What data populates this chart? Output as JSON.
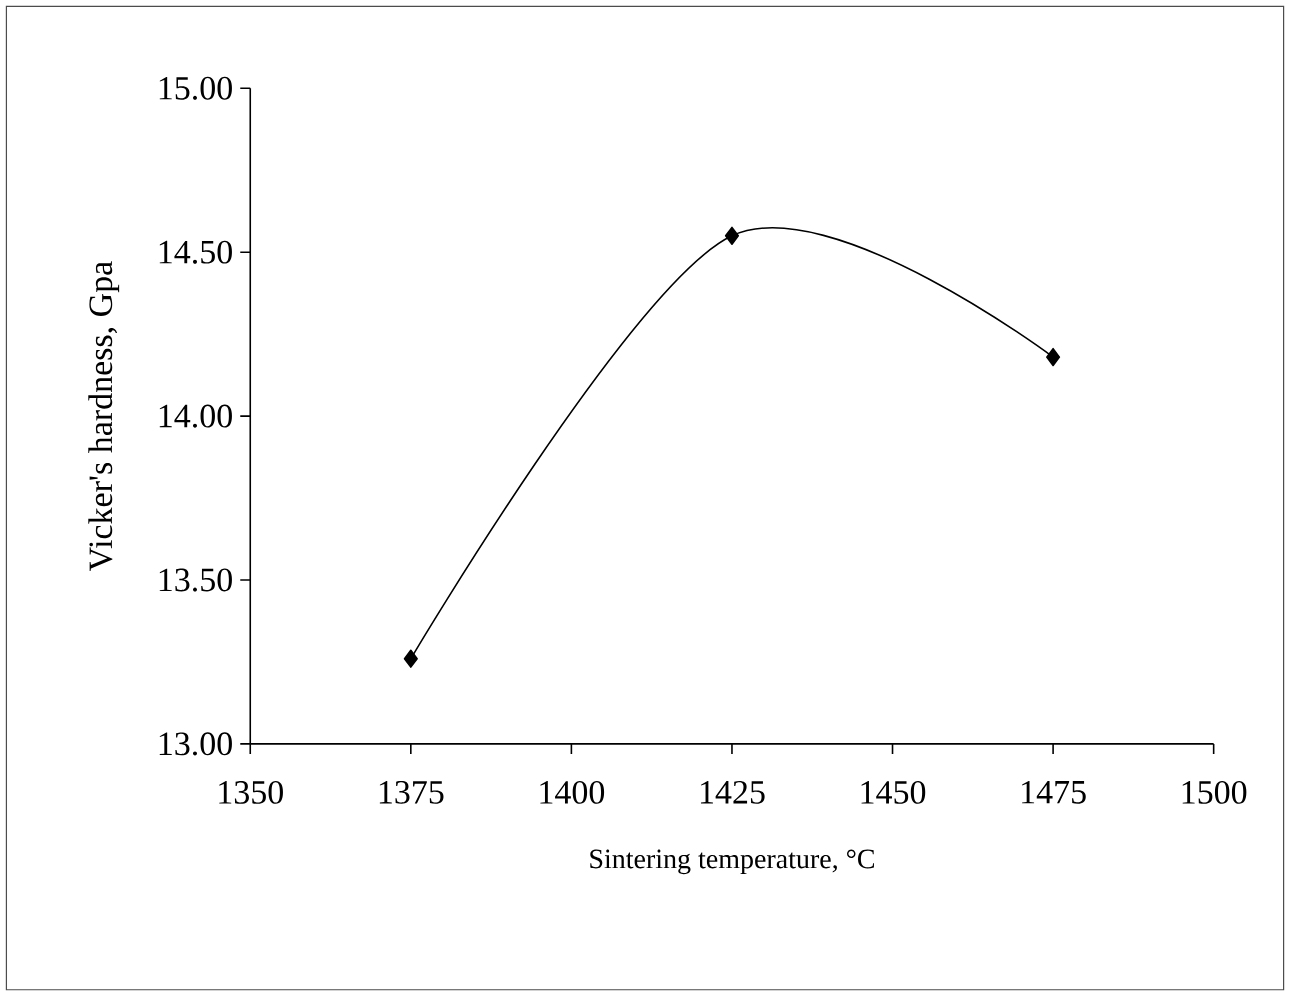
{
  "chart_data": {
    "type": "line",
    "xlabel": "Sintering temperature, °C",
    "ylabel": "Vicker's hardness, Gpa",
    "x": [
      1375,
      1425,
      1475
    ],
    "series": [
      {
        "color": "#000000",
        "values": [
          13.26,
          14.55,
          14.18
        ]
      }
    ],
    "xlim": [
      1350,
      1500
    ],
    "xticks": [
      1350,
      1375,
      1400,
      1425,
      1450,
      1475,
      1500
    ],
    "ylim": [
      13,
      15
    ],
    "yticks": [
      {
        "value": 13,
        "label": "13.00"
      },
      {
        "value": 13.5,
        "label": "13.50"
      },
      {
        "value": 14,
        "label": "14.00"
      },
      {
        "value": 14.5,
        "label": "14.50"
      },
      {
        "value": 15,
        "label": "15.00"
      }
    ],
    "marker": "diamond",
    "line_style": "solid",
    "grid": false
  }
}
